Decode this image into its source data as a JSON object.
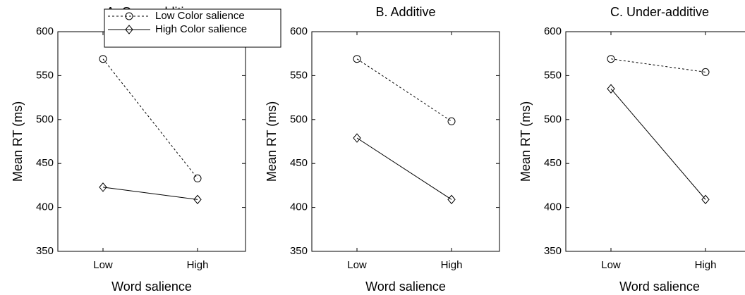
{
  "chart_data": [
    {
      "type": "line",
      "title": "A. Over-additive",
      "x_label": "Word salience",
      "y_label": "Mean RT (ms)",
      "categories": [
        "Low",
        "High"
      ],
      "ylim": [
        350,
        600
      ],
      "yticks": [
        350,
        400,
        450,
        500,
        550,
        600
      ],
      "legend": "upper right",
      "series": [
        {
          "name": "Low Color salience",
          "color": "#000000",
          "marker": "circle",
          "linestyle": "dashed",
          "values": [
            569,
            433
          ]
        },
        {
          "name": "High Color salience",
          "color": "#000000",
          "marker": "diamond",
          "linestyle": "solid",
          "values": [
            423,
            409
          ]
        }
      ]
    },
    {
      "type": "line",
      "title": "B. Additive",
      "x_label": "Word salience",
      "y_label": "Mean RT (ms)",
      "categories": [
        "Low",
        "High"
      ],
      "ylim": [
        350,
        600
      ],
      "yticks": [
        350,
        400,
        450,
        500,
        550,
        600
      ],
      "series": [
        {
          "color": "#000000",
          "marker": "circle",
          "linestyle": "dashed",
          "values": [
            569,
            498
          ]
        },
        {
          "color": "#000000",
          "marker": "diamond",
          "linestyle": "solid",
          "values": [
            479,
            409
          ]
        }
      ]
    },
    {
      "type": "line",
      "title": "C. Under-additive",
      "x_label": "Word salience",
      "y_label": "Mean RT (ms)",
      "categories": [
        "Low",
        "High"
      ],
      "ylim": [
        350,
        600
      ],
      "yticks": [
        350,
        400,
        450,
        500,
        550,
        600
      ],
      "series": [
        {
          "color": "#000000",
          "marker": "circle",
          "linestyle": "dashed",
          "values": [
            569,
            554
          ]
        },
        {
          "color": "#000000",
          "marker": "diamond",
          "linestyle": "solid",
          "values": [
            535,
            409
          ]
        }
      ]
    }
  ]
}
